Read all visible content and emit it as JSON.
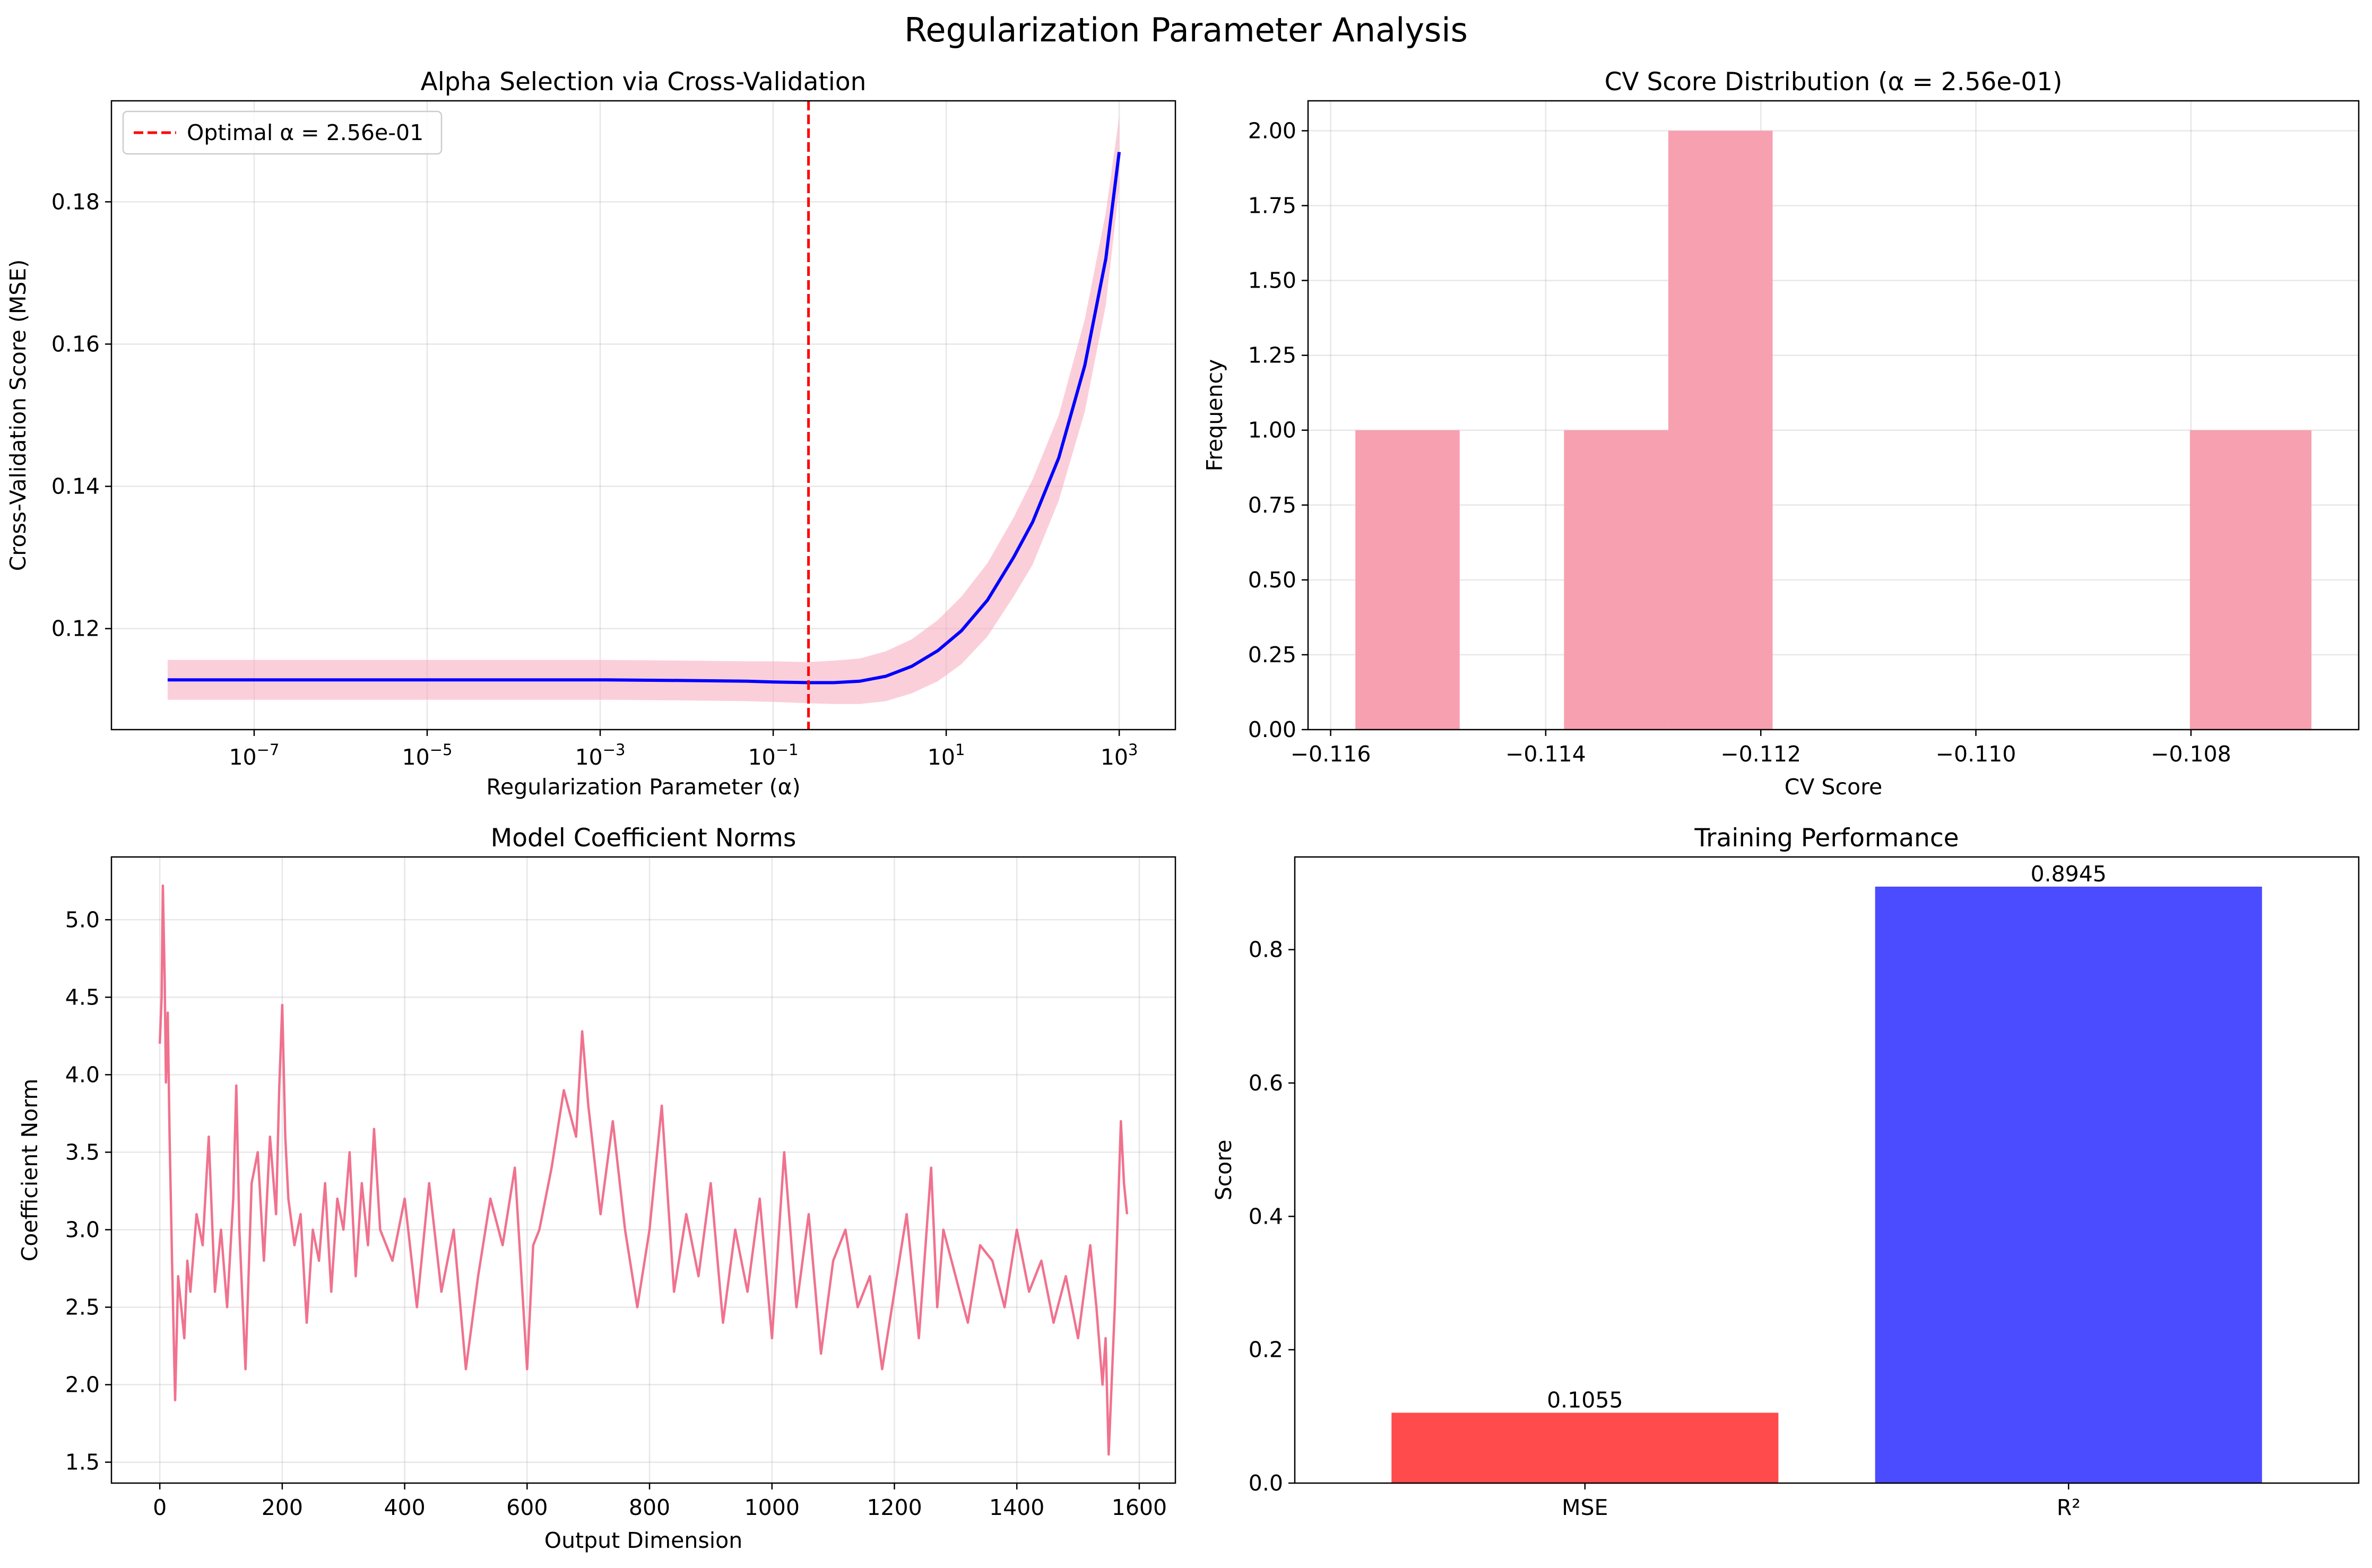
{
  "suptitle": "Regularization Parameter Analysis",
  "chart_data": [
    {
      "id": "alpha",
      "type": "line",
      "title": "Alpha Selection via Cross-Validation",
      "xlabel": "Regularization Parameter (α)",
      "ylabel": "Cross-Validation Score (MSE)",
      "xscale": "log",
      "xlim": [
        2.24e-09,
        4460.0
      ],
      "ylim": [
        0.1058,
        0.1942
      ],
      "xticks": [
        {
          "value": 1e-07,
          "base": "10",
          "exp": "−7"
        },
        {
          "value": 1e-05,
          "base": "10",
          "exp": "−5"
        },
        {
          "value": 0.001,
          "base": "10",
          "exp": "−3"
        },
        {
          "value": 0.1,
          "base": "10",
          "exp": "−1"
        },
        {
          "value": 10.0,
          "base": "10",
          "exp": "1"
        },
        {
          "value": 1000.0,
          "base": "10",
          "exp": "3"
        }
      ],
      "yticks": [
        {
          "value": 0.12,
          "label": "0.12"
        },
        {
          "value": 0.14,
          "label": "0.14"
        },
        {
          "value": 0.16,
          "label": "0.16"
        },
        {
          "value": 0.18,
          "label": "0.18"
        }
      ],
      "grid": true,
      "legend_position": "upper-left",
      "legend": [
        {
          "label": "Optimal α = 2.56e-01",
          "color": "#ff0000",
          "style": "dashed"
        }
      ],
      "optimal_alpha": 0.256,
      "series": {
        "color": "#0000ff",
        "band_color": "#f7a8bc",
        "x": [
          1e-08,
          1e-07,
          1e-06,
          1e-05,
          0.0001,
          0.001,
          0.01,
          0.05,
          0.1,
          0.256,
          0.5,
          1,
          2,
          4,
          8,
          15,
          30,
          60,
          100,
          200,
          400,
          700,
          1000
        ],
        "y": [
          0.1128,
          0.1128,
          0.1128,
          0.1128,
          0.1128,
          0.1128,
          0.1127,
          0.1126,
          0.1125,
          0.1124,
          0.1124,
          0.1126,
          0.1133,
          0.1147,
          0.1169,
          0.1197,
          0.124,
          0.13,
          0.135,
          0.144,
          0.157,
          0.172,
          0.187
        ],
        "low": [
          0.11,
          0.11,
          0.11,
          0.11,
          0.11,
          0.11,
          0.1099,
          0.1098,
          0.1097,
          0.1095,
          0.1094,
          0.1094,
          0.1098,
          0.1109,
          0.1126,
          0.115,
          0.1189,
          0.1245,
          0.129,
          0.138,
          0.1505,
          0.1655,
          0.182
        ],
        "high": [
          0.1156,
          0.1156,
          0.1156,
          0.1156,
          0.1156,
          0.1156,
          0.1155,
          0.1154,
          0.1154,
          0.1153,
          0.1155,
          0.1158,
          0.1168,
          0.1185,
          0.1212,
          0.1245,
          0.1292,
          0.1356,
          0.141,
          0.15,
          0.1635,
          0.1785,
          0.192
        ]
      }
    },
    {
      "id": "hist",
      "type": "bar",
      "title": "CV Score Distribution (α = 2.56e-01)",
      "xlabel": "CV Score",
      "ylabel": "Frequency",
      "xlim": [
        -0.11621,
        -0.10644
      ],
      "ylim": [
        0,
        2.1
      ],
      "xticks": [
        {
          "value": -0.116,
          "label": "−0.116"
        },
        {
          "value": -0.114,
          "label": "−0.114"
        },
        {
          "value": -0.112,
          "label": "−0.112"
        },
        {
          "value": -0.11,
          "label": "−0.110"
        },
        {
          "value": -0.108,
          "label": "−0.108"
        }
      ],
      "yticks": [
        {
          "value": 0.0,
          "label": "0.00"
        },
        {
          "value": 0.25,
          "label": "0.25"
        },
        {
          "value": 0.5,
          "label": "0.50"
        },
        {
          "value": 0.75,
          "label": "0.75"
        },
        {
          "value": 1.0,
          "label": "1.00"
        },
        {
          "value": 1.25,
          "label": "1.25"
        },
        {
          "value": 1.5,
          "label": "1.50"
        },
        {
          "value": 1.75,
          "label": "1.75"
        },
        {
          "value": 2.0,
          "label": "2.00"
        }
      ],
      "grid": true,
      "color": "#f7a0b0",
      "bins": [
        {
          "x0": -0.11577,
          "x1": -0.1148,
          "count": 1
        },
        {
          "x0": -0.1148,
          "x1": -0.11383,
          "count": 0
        },
        {
          "x0": -0.11383,
          "x1": -0.11286,
          "count": 1
        },
        {
          "x0": -0.11286,
          "x1": -0.11189,
          "count": 2
        },
        {
          "x0": -0.11189,
          "x1": -0.11092,
          "count": 0
        },
        {
          "x0": -0.11092,
          "x1": -0.10995,
          "count": 0
        },
        {
          "x0": -0.10995,
          "x1": -0.10898,
          "count": 0
        },
        {
          "x0": -0.10898,
          "x1": -0.10801,
          "count": 0
        },
        {
          "x0": -0.10801,
          "x1": -0.10688,
          "count": 1
        }
      ]
    },
    {
      "id": "norms",
      "type": "line",
      "title": "Model Coefficient Norms",
      "xlabel": "Output Dimension",
      "ylabel": "Coefficient Norm",
      "xlim": [
        -79,
        1659
      ],
      "ylim": [
        1.365,
        5.405
      ],
      "xticks": [
        {
          "value": 0,
          "label": "0"
        },
        {
          "value": 200,
          "label": "200"
        },
        {
          "value": 400,
          "label": "400"
        },
        {
          "value": 600,
          "label": "600"
        },
        {
          "value": 800,
          "label": "800"
        },
        {
          "value": 1000,
          "label": "1000"
        },
        {
          "value": 1200,
          "label": "1200"
        },
        {
          "value": 1400,
          "label": "1400"
        },
        {
          "value": 1600,
          "label": "1600"
        }
      ],
      "yticks": [
        {
          "value": 1.5,
          "label": "1.5"
        },
        {
          "value": 2.0,
          "label": "2.0"
        },
        {
          "value": 2.5,
          "label": "2.5"
        },
        {
          "value": 3.0,
          "label": "3.0"
        },
        {
          "value": 3.5,
          "label": "3.5"
        },
        {
          "value": 4.0,
          "label": "4.0"
        },
        {
          "value": 4.5,
          "label": "4.5"
        },
        {
          "value": 5.0,
          "label": "5.0"
        }
      ],
      "grid": true,
      "color": "#f0728e",
      "x": [
        0,
        3,
        5,
        8,
        10,
        13,
        16,
        20,
        25,
        30,
        35,
        40,
        45,
        50,
        60,
        70,
        80,
        90,
        100,
        110,
        120,
        125,
        130,
        140,
        150,
        160,
        170,
        180,
        190,
        195,
        200,
        205,
        210,
        220,
        230,
        240,
        250,
        260,
        270,
        280,
        290,
        300,
        310,
        320,
        330,
        340,
        350,
        360,
        380,
        400,
        420,
        440,
        460,
        480,
        500,
        520,
        540,
        560,
        580,
        600,
        610,
        620,
        640,
        660,
        680,
        690,
        700,
        720,
        740,
        760,
        780,
        800,
        820,
        840,
        860,
        880,
        900,
        920,
        940,
        960,
        980,
        1000,
        1020,
        1040,
        1060,
        1080,
        1100,
        1120,
        1140,
        1160,
        1180,
        1200,
        1220,
        1240,
        1260,
        1270,
        1280,
        1300,
        1320,
        1340,
        1360,
        1380,
        1400,
        1420,
        1440,
        1460,
        1480,
        1500,
        1520,
        1530,
        1540,
        1545,
        1550,
        1560,
        1570,
        1575,
        1580
      ],
      "y": [
        4.2,
        4.5,
        5.22,
        4.6,
        3.95,
        4.4,
        3.6,
        2.8,
        1.9,
        2.7,
        2.5,
        2.3,
        2.8,
        2.6,
        3.1,
        2.9,
        3.6,
        2.6,
        3.0,
        2.5,
        3.2,
        3.93,
        3.0,
        2.1,
        3.3,
        3.5,
        2.8,
        3.6,
        3.1,
        3.9,
        4.45,
        3.6,
        3.2,
        2.9,
        3.1,
        2.4,
        3.0,
        2.8,
        3.3,
        2.6,
        3.2,
        3.0,
        3.5,
        2.7,
        3.3,
        2.9,
        3.65,
        3.0,
        2.8,
        3.2,
        2.5,
        3.3,
        2.6,
        3.0,
        2.1,
        2.7,
        3.2,
        2.9,
        3.4,
        2.1,
        2.9,
        3.0,
        3.4,
        3.9,
        3.6,
        4.28,
        3.8,
        3.1,
        3.7,
        3.0,
        2.5,
        3.0,
        3.8,
        2.6,
        3.1,
        2.7,
        3.3,
        2.4,
        3.0,
        2.6,
        3.2,
        2.3,
        3.5,
        2.5,
        3.1,
        2.2,
        2.8,
        3.0,
        2.5,
        2.7,
        2.1,
        2.6,
        3.1,
        2.3,
        3.4,
        2.5,
        3.0,
        2.7,
        2.4,
        2.9,
        2.8,
        2.5,
        3.0,
        2.6,
        2.8,
        2.4,
        2.7,
        2.3,
        2.9,
        2.5,
        2.0,
        2.3,
        1.55,
        2.5,
        3.7,
        3.3,
        3.1
      ]
    },
    {
      "id": "perf",
      "type": "bar",
      "title": "Training Performance",
      "xlabel": "",
      "ylabel": "Score",
      "ylim": [
        0,
        0.939
      ],
      "categories": [
        "MSE",
        "R²"
      ],
      "values": [
        0.1055,
        0.8945
      ],
      "value_labels": [
        "0.1055",
        "0.8945"
      ],
      "colors": [
        "#ff4b4b",
        "#4b4bff"
      ],
      "yticks": [
        {
          "value": 0.0,
          "label": "0.0"
        },
        {
          "value": 0.2,
          "label": "0.2"
        },
        {
          "value": 0.4,
          "label": "0.4"
        },
        {
          "value": 0.6,
          "label": "0.6"
        },
        {
          "value": 0.8,
          "label": "0.8"
        }
      ],
      "grid": false
    }
  ]
}
